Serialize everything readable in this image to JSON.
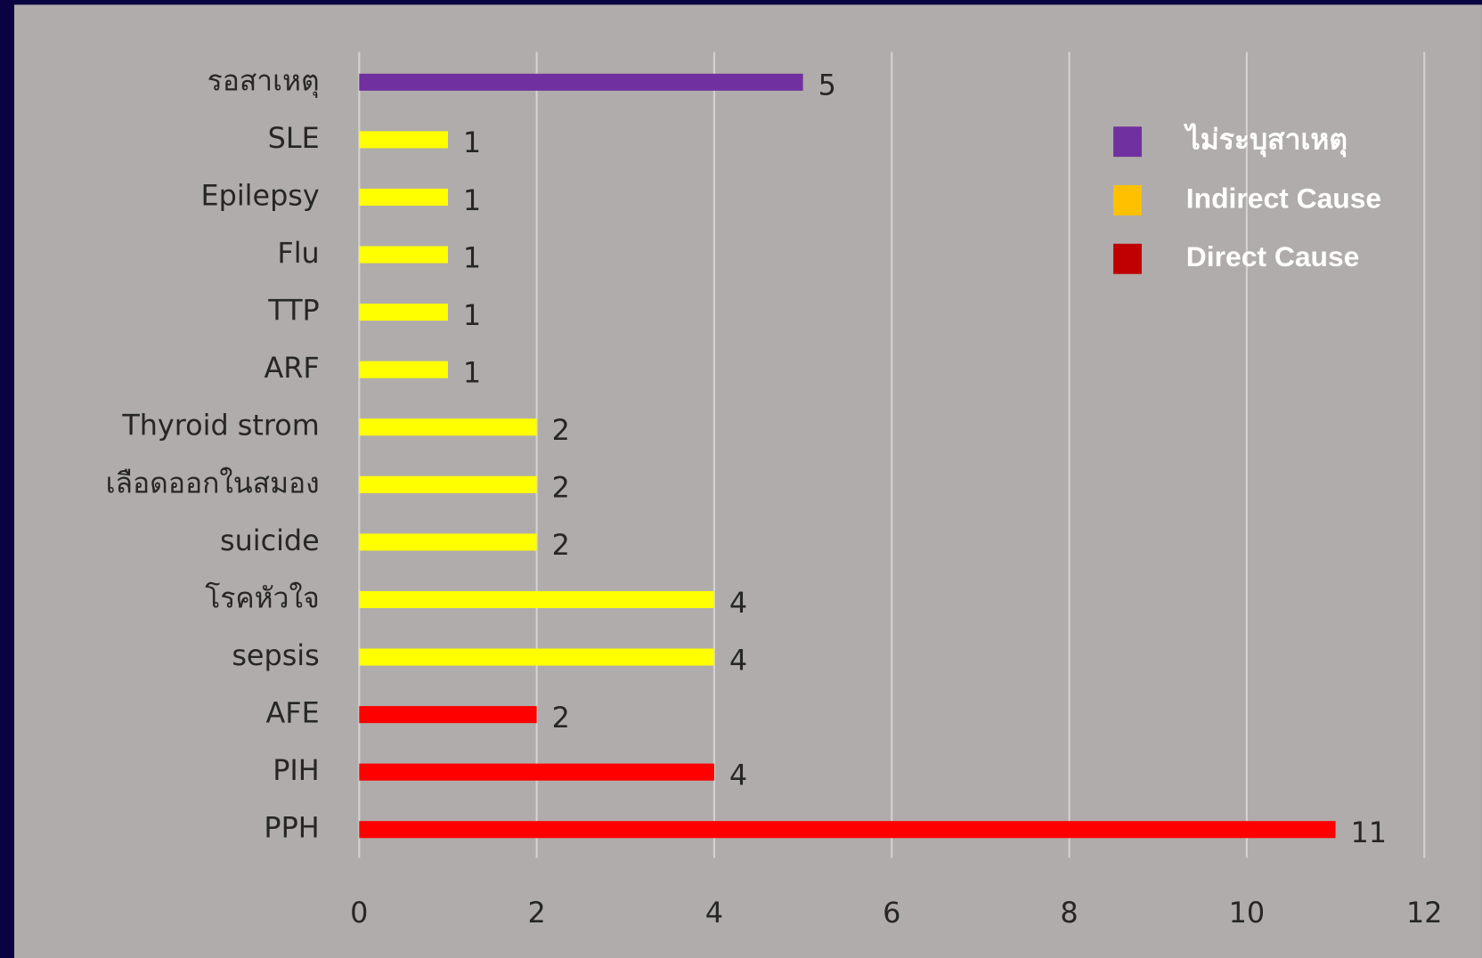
{
  "chart_data": {
    "type": "bar",
    "orientation": "horizontal",
    "categories": [
      "รอสาเหตุ",
      "SLE",
      "Epilepsy",
      "Flu",
      "TTP",
      "ARF",
      "Thyroid strom",
      "เลือดออกในสมอง",
      "suicide",
      "โรคหัวใจ",
      "sepsis",
      "AFE",
      "PIH",
      "PPH"
    ],
    "values": [
      5,
      1,
      1,
      1,
      1,
      1,
      2,
      2,
      2,
      4,
      4,
      2,
      4,
      11
    ],
    "colors": [
      "#7030a0",
      "#ffff00",
      "#ffff00",
      "#ffff00",
      "#ffff00",
      "#ffff00",
      "#ffff00",
      "#ffff00",
      "#ffff00",
      "#ffff00",
      "#ffff00",
      "#ff0000",
      "#ff0000",
      "#ff0000"
    ],
    "legend": [
      {
        "name": "ไม่ระบุสาเหตุ",
        "color": "#7030a0"
      },
      {
        "name": "Indirect Cause",
        "color": "#ffc000"
      },
      {
        "name": "Direct Cause",
        "color": "#c00000"
      }
    ],
    "xlim": [
      0,
      12
    ],
    "xticks": [
      0,
      2,
      4,
      6,
      8,
      10,
      12
    ],
    "grid": true
  }
}
